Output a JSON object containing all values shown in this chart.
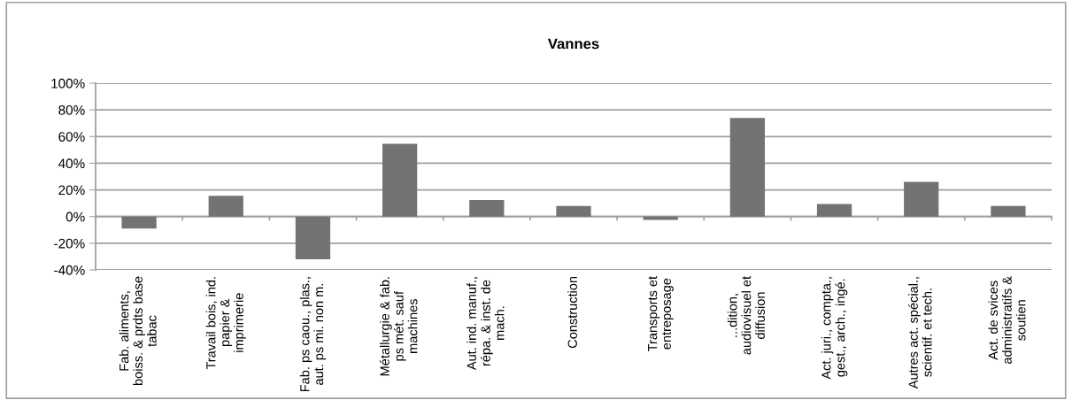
{
  "chart_data": {
    "type": "bar",
    "title": "Vannes",
    "categories": [
      "Fab. aliments,\nboiss. & prdts base\ntabac",
      "Travail bois, ind.\npapier &\nimprimerie",
      "Fab. ps caou., plas.,\naut. ps mi. non m.",
      "Métallurgie & fab.\nps mét. sauf\nmachines",
      "Aut. ind. manuf.,\nrépa. & inst. de\nmach.",
      "Construction",
      "Transports et\nentreposage",
      "...dition,\naudiovisuel et\ndiffusion",
      "Act. juri., compta.,\ngest., arch., ingé.",
      "Autres act. spécial.,\nscientif. et tech.",
      "Act. de svices\nadministratifs &\nsoutien"
    ],
    "values": [
      -9,
      15.5,
      -32,
      54.5,
      12.5,
      8,
      -2.5,
      74,
      9.5,
      26,
      8
    ],
    "color": "#737373",
    "ylim": [
      -40,
      100
    ],
    "yticks": [
      {
        "value": -40,
        "label": "-40%"
      },
      {
        "value": -20,
        "label": "-20%"
      },
      {
        "value": 0,
        "label": "0%"
      },
      {
        "value": 20,
        "label": "20%"
      },
      {
        "value": 40,
        "label": "40%"
      },
      {
        "value": 60,
        "label": "60%"
      },
      {
        "value": 80,
        "label": "80%"
      },
      {
        "value": 100,
        "label": "100%"
      }
    ],
    "grid": "y"
  }
}
